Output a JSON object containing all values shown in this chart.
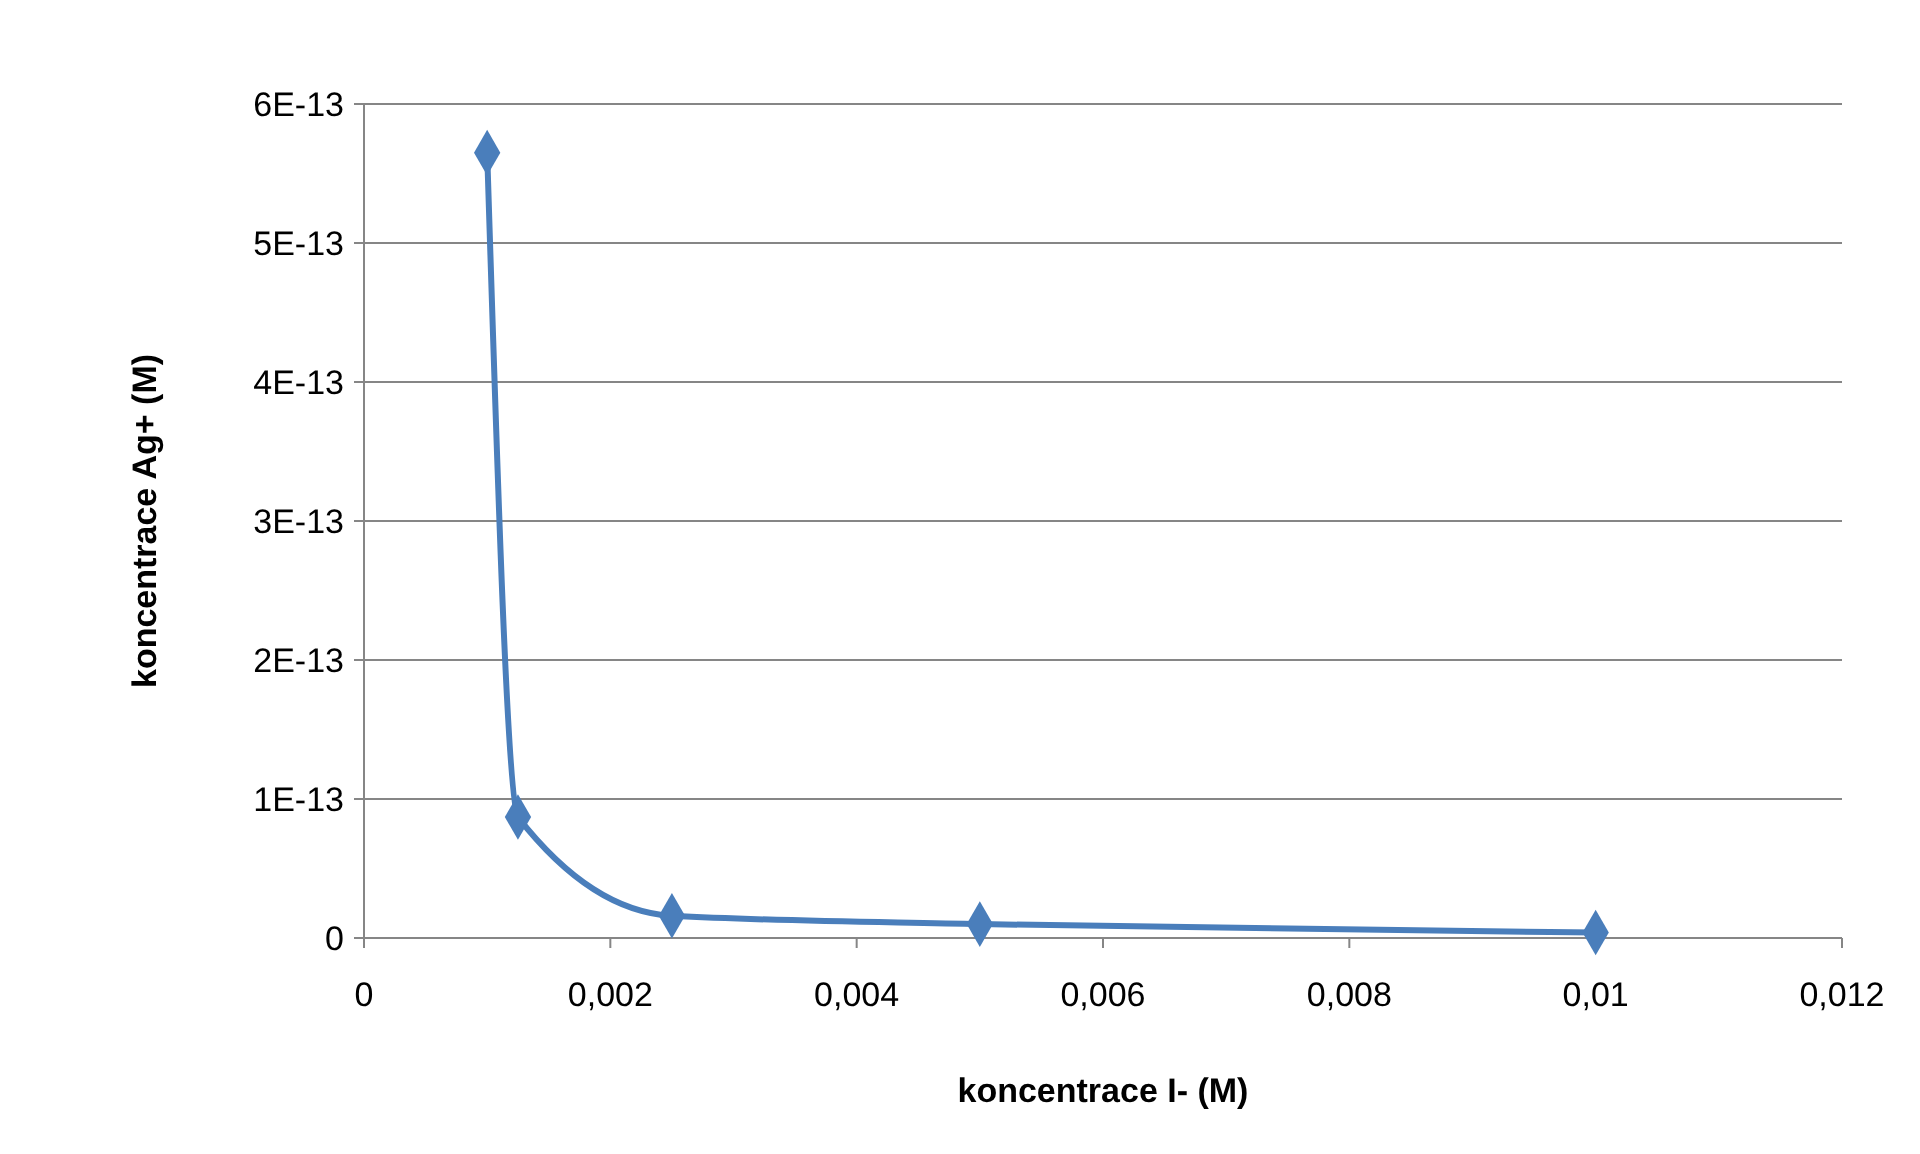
{
  "chart_data": {
    "type": "line",
    "xlabel": "koncentrace I- (M)",
    "ylabel": "koncentrace Ag+ (M)",
    "x": [
      0.001,
      0.00125,
      0.0025,
      0.005,
      0.01
    ],
    "series": [
      {
        "color": "#4a7ebb",
        "values": [
          5.65e-13,
          8.7e-14,
          1.6e-14,
          1e-14,
          4e-15
        ]
      }
    ],
    "xlim": [
      0,
      0.012
    ],
    "xticks": [
      0,
      {
        "value": 0.002,
        "label": "0,002"
      },
      {
        "value": 0.004,
        "label": "0,004"
      },
      {
        "value": 0.006,
        "label": "0,006"
      },
      {
        "value": 0.008,
        "label": "0,008"
      },
      {
        "value": 0.01,
        "label": "0,01"
      },
      {
        "value": 0.012,
        "label": "0,012"
      }
    ],
    "ylim": [
      0,
      6e-13
    ],
    "yticks": [
      0,
      {
        "value": 1e-13,
        "label": "1E-13"
      },
      {
        "value": 2e-13,
        "label": "2E-13"
      },
      {
        "value": 3e-13,
        "label": "3E-13"
      },
      {
        "value": 4e-13,
        "label": "4E-13"
      },
      {
        "value": 5e-13,
        "label": "5E-13"
      },
      {
        "value": 6e-13,
        "label": "6E-13"
      }
    ],
    "grid": "y",
    "marker": "diamond",
    "line_style": "solid"
  }
}
